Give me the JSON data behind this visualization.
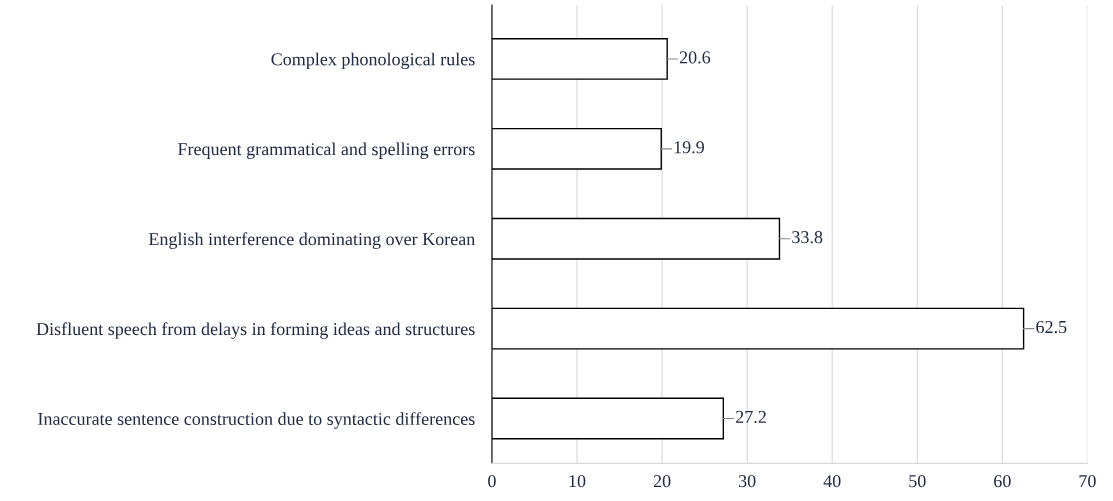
{
  "chart_data": {
    "type": "bar",
    "orientation": "horizontal",
    "categories": [
      "Complex phonological rules",
      "Frequent grammatical and spelling errors",
      "English interference dominating over Korean",
      "Disfluent speech from delays in forming ideas and structures",
      "Inaccurate sentence construction due to syntactic differences"
    ],
    "values": [
      20.6,
      19.9,
      33.8,
      62.5,
      27.2
    ],
    "colors": [
      "#ffffff",
      "#ffffff",
      "#ffffff",
      "#ffffff",
      "#ffffff"
    ],
    "xlim": [
      0,
      70
    ],
    "xticks": [
      0,
      10,
      20,
      30,
      40,
      50,
      60,
      70
    ],
    "grid": "x",
    "data_labels": true
  }
}
